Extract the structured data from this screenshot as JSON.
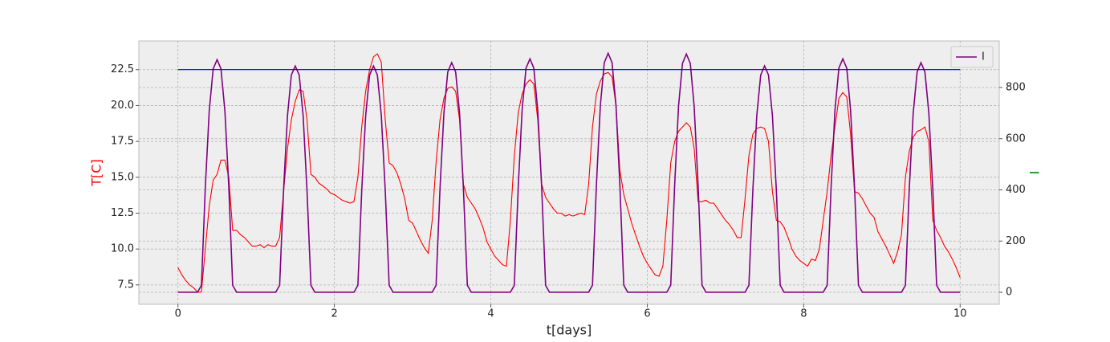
{
  "chart_data": {
    "type": "line",
    "xlabel": "t[days]",
    "ylabel": "T[C]",
    "y2label": "I",
    "y2label_color": "#008000",
    "ylabel_color": "#ff0000",
    "x": [
      0,
      0.05,
      0.1,
      0.15,
      0.2,
      0.25,
      0.3,
      0.35,
      0.4,
      0.45,
      0.5,
      0.55,
      0.6,
      0.65,
      0.7,
      0.75,
      0.8,
      0.85,
      0.9,
      0.95,
      1,
      1.05,
      1.1,
      1.15,
      1.2,
      1.25,
      1.3,
      1.35,
      1.4,
      1.45,
      1.5,
      1.55,
      1.6,
      1.65,
      1.7,
      1.75,
      1.8,
      1.85,
      1.9,
      1.95,
      2,
      2.05,
      2.1,
      2.15,
      2.2,
      2.25,
      2.3,
      2.35,
      2.4,
      2.45,
      2.5,
      2.55,
      2.6,
      2.65,
      2.7,
      2.75,
      2.8,
      2.85,
      2.9,
      2.95,
      3,
      3.05,
      3.1,
      3.15,
      3.2,
      3.25,
      3.3,
      3.35,
      3.4,
      3.45,
      3.5,
      3.55,
      3.6,
      3.65,
      3.7,
      3.75,
      3.8,
      3.85,
      3.9,
      3.95,
      4,
      4.05,
      4.1,
      4.15,
      4.2,
      4.25,
      4.3,
      4.35,
      4.4,
      4.45,
      4.5,
      4.55,
      4.6,
      4.65,
      4.7,
      4.75,
      4.8,
      4.85,
      4.9,
      4.95,
      5,
      5.05,
      5.1,
      5.15,
      5.2,
      5.25,
      5.3,
      5.35,
      5.4,
      5.45,
      5.5,
      5.55,
      5.6,
      5.65,
      5.7,
      5.75,
      5.8,
      5.85,
      5.9,
      5.95,
      6,
      6.05,
      6.1,
      6.15,
      6.2,
      6.25,
      6.3,
      6.35,
      6.4,
      6.45,
      6.5,
      6.55,
      6.6,
      6.65,
      6.7,
      6.75,
      6.8,
      6.85,
      6.9,
      6.95,
      7,
      7.05,
      7.1,
      7.15,
      7.2,
      7.25,
      7.3,
      7.35,
      7.4,
      7.45,
      7.5,
      7.55,
      7.6,
      7.65,
      7.7,
      7.75,
      7.8,
      7.85,
      7.9,
      7.95,
      8,
      8.05,
      8.1,
      8.15,
      8.2,
      8.25,
      8.3,
      8.35,
      8.4,
      8.45,
      8.5,
      8.55,
      8.6,
      8.65,
      8.7,
      8.75,
      8.8,
      8.85,
      8.9,
      8.95,
      9,
      9.05,
      9.1,
      9.15,
      9.2,
      9.25,
      9.3,
      9.35,
      9.4,
      9.45,
      9.5,
      9.55,
      9.6,
      9.65,
      9.7,
      9.75,
      9.8,
      9.85,
      9.9,
      9.95,
      10
    ],
    "series": [
      {
        "color": "#ff0000",
        "axis": "y",
        "values": [
          8.7,
          8.2,
          7.8,
          7.5,
          7.3,
          7.0,
          7.0,
          10,
          13,
          14.8,
          15.2,
          16.2,
          16.2,
          15,
          11.3,
          11.3,
          11,
          10.8,
          10.5,
          10.2,
          10.2,
          10.3,
          10.1,
          10.3,
          10.2,
          10.2,
          10.8,
          14,
          17,
          19,
          20.3,
          21.1,
          21,
          19,
          15.2,
          15,
          14.6,
          14.4,
          14.2,
          13.9,
          13.8,
          13.6,
          13.4,
          13.3,
          13.2,
          13.3,
          15,
          18.5,
          21,
          22.5,
          23.4,
          23.6,
          23,
          19,
          16,
          15.8,
          15.3,
          14.5,
          13.5,
          12,
          11.8,
          11.2,
          10.6,
          10.1,
          9.7,
          12,
          16,
          19,
          20.5,
          21.2,
          21.3,
          21,
          19,
          14.5,
          13.6,
          13.2,
          12.8,
          12.2,
          11.5,
          10.5,
          10,
          9.5,
          9.2,
          8.9,
          8.8,
          12,
          16.5,
          19.5,
          20.8,
          21.5,
          21.8,
          21.5,
          19,
          14.5,
          13.6,
          13.2,
          12.8,
          12.5,
          12.5,
          12.3,
          12.4,
          12.3,
          12.4,
          12.5,
          12.4,
          14.5,
          18.5,
          20.8,
          21.7,
          22.2,
          22.3,
          22,
          20,
          15.5,
          13.8,
          12.8,
          11.8,
          11,
          10.2,
          9.5,
          9,
          8.6,
          8.2,
          8.1,
          8.8,
          12,
          16,
          17.5,
          18.2,
          18.5,
          18.8,
          18.5,
          17,
          13.3,
          13.3,
          13.4,
          13.2,
          13.2,
          12.8,
          12.4,
          12,
          11.7,
          11.3,
          10.8,
          10.8,
          13.5,
          16.5,
          18,
          18.4,
          18.5,
          18.4,
          17.5,
          14,
          12,
          11.9,
          11.5,
          10.8,
          10,
          9.5,
          9.2,
          9,
          8.8,
          9.3,
          9.2,
          10,
          12,
          14,
          16.5,
          18.5,
          20.5,
          20.9,
          20.6,
          18,
          14,
          13.9,
          13.5,
          13,
          12.5,
          12.2,
          11.2,
          10.7,
          10.2,
          9.6,
          9,
          9.8,
          11,
          15,
          16.8,
          17.8,
          18.2,
          18.3,
          18.5,
          17.5,
          12,
          11.3,
          10.8,
          10.2,
          9.8,
          9.3,
          8.7,
          8.0
        ]
      },
      {
        "name": "I",
        "color": "#800080",
        "axis": "y2",
        "values": [
          0,
          0,
          0,
          0,
          0,
          0,
          27,
          409,
          709,
          873,
          909,
          873,
          709,
          409,
          27,
          0,
          0,
          0,
          0,
          0,
          0,
          0,
          0,
          0,
          0,
          0,
          27,
          398,
          690,
          849,
          884,
          849,
          690,
          398,
          27,
          0,
          0,
          0,
          0,
          0,
          0,
          0,
          0,
          0,
          0,
          0,
          27,
          398,
          690,
          849,
          884,
          849,
          690,
          398,
          27,
          0,
          0,
          0,
          0,
          0,
          0,
          0,
          0,
          0,
          0,
          0,
          27,
          404,
          700,
          861,
          897,
          861,
          700,
          404,
          27,
          0,
          0,
          0,
          0,
          0,
          0,
          0,
          0,
          0,
          0,
          0,
          27,
          410,
          711,
          876,
          912,
          876,
          711,
          410,
          27,
          0,
          0,
          0,
          0,
          0,
          0,
          0,
          0,
          0,
          0,
          0,
          28,
          420,
          729,
          897,
          934,
          897,
          729,
          420,
          28,
          0,
          0,
          0,
          0,
          0,
          0,
          0,
          0,
          0,
          0,
          0,
          28,
          419,
          726,
          894,
          931,
          894,
          726,
          419,
          28,
          0,
          0,
          0,
          0,
          0,
          0,
          0,
          0,
          0,
          0,
          0,
          27,
          398,
          690,
          849,
          884,
          849,
          690,
          398,
          27,
          0,
          0,
          0,
          0,
          0,
          0,
          0,
          0,
          0,
          0,
          0,
          27,
          410,
          711,
          876,
          912,
          876,
          711,
          410,
          27,
          0,
          0,
          0,
          0,
          0,
          0,
          0,
          0,
          0,
          0,
          0,
          27,
          404,
          700,
          861,
          897,
          861,
          700,
          404,
          27,
          0,
          0,
          0,
          0,
          0,
          0
        ]
      },
      {
        "color": "#0000cc",
        "axis": "y",
        "x": [
          0,
          10
        ],
        "values": [
          22.5,
          22.5
        ]
      }
    ],
    "xlim": [
      -0.5,
      10.5
    ],
    "xticks": [
      0,
      2,
      4,
      6,
      8,
      10
    ],
    "ylim": [
      6.15,
      24.5
    ],
    "yticks": [
      7.5,
      {
        "value": 10,
        "label": "10.0"
      },
      12.5,
      {
        "value": 15,
        "label": "15.0"
      },
      17.5,
      {
        "value": 20,
        "label": "20.0"
      },
      22.5
    ],
    "y2lim": [
      -47,
      982
    ],
    "y2ticks": [
      0,
      200,
      400,
      600,
      800
    ],
    "grid": true,
    "legend": "upper right"
  }
}
